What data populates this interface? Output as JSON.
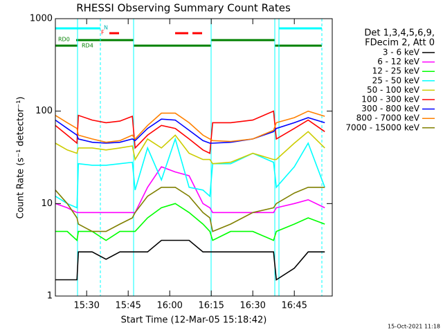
{
  "chart_data": {
    "type": "line",
    "title": "RHESSI Observing Summary Count Rates",
    "xlabel": "Start Time (12-Mar-05 15:18:42)",
    "ylabel": "Count Rate (s⁻¹ detector⁻¹)",
    "legend_title": [
      "Det 1,3,4,5,6,9,",
      "FDecim 2, Att 0"
    ],
    "footer": "15-Oct-2021 11:18",
    "annotations": [
      "N",
      "F",
      "RD0",
      "RD4"
    ],
    "log_y": true,
    "ylim": [
      1,
      1000
    ],
    "yticks": [
      1,
      10,
      100,
      1000
    ],
    "xlim": [
      18.7,
      118.7
    ],
    "xticks": [
      {
        "value": 30,
        "label": "15:30"
      },
      {
        "value": 45,
        "label": "15:45"
      },
      {
        "value": 60,
        "label": "16:00"
      },
      {
        "value": 75,
        "label": "16:15"
      },
      {
        "value": 90,
        "label": "16:30"
      },
      {
        "value": 105,
        "label": "16:45"
      }
    ],
    "x": [
      18.7,
      23,
      26.5,
      27,
      32,
      37,
      42,
      46.5,
      47.5,
      52,
      57,
      62,
      67,
      72,
      74.5,
      75.5,
      82,
      90,
      97.5,
      98.5,
      105,
      110,
      116
    ],
    "series": [
      {
        "name": "3 - 6 keV",
        "color": "#000000",
        "values": [
          1.5,
          1.5,
          1.5,
          3,
          3,
          2.5,
          3,
          3,
          3,
          3,
          4,
          4,
          4,
          3,
          3,
          3,
          3,
          3,
          3,
          1.5,
          2,
          3,
          3
        ]
      },
      {
        "name": "6 - 12 keV",
        "color": "#ff00ff",
        "values": [
          10,
          9,
          8,
          8,
          8,
          8,
          8,
          8,
          8,
          15,
          25,
          22,
          20,
          10,
          9,
          8,
          8,
          8,
          8,
          9,
          10,
          11,
          9
        ]
      },
      {
        "name": "12 - 25 keV",
        "color": "#00ff00",
        "values": [
          5,
          5,
          4,
          5,
          5,
          4,
          5,
          5,
          5,
          7,
          9,
          10,
          8,
          6,
          5,
          4,
          5,
          5,
          4,
          5,
          6,
          7,
          6
        ]
      },
      {
        "name": "25 - 50 keV",
        "color": "#00ffff",
        "values": [
          12,
          10,
          9,
          27,
          26,
          26,
          27,
          28,
          14,
          40,
          18,
          50,
          15,
          14,
          12,
          27,
          27,
          35,
          28,
          15,
          25,
          45,
          15
        ]
      },
      {
        "name": "50 - 100 keV",
        "color": "#cccc00",
        "values": [
          45,
          38,
          35,
          40,
          40,
          38,
          40,
          42,
          30,
          50,
          40,
          55,
          35,
          30,
          30,
          27,
          28,
          35,
          30,
          30,
          45,
          60,
          40
        ]
      },
      {
        "name": "100 - 300 keV",
        "color": "#ff0000",
        "values": [
          70,
          55,
          45,
          90,
          80,
          75,
          78,
          88,
          40,
          55,
          70,
          65,
          50,
          38,
          35,
          75,
          75,
          80,
          100,
          50,
          65,
          80,
          60
        ]
      },
      {
        "name": "300 - 800 keV",
        "color": "#0000ff",
        "values": [
          80,
          65,
          55,
          50,
          46,
          45,
          46,
          50,
          48,
          65,
          82,
          80,
          62,
          48,
          45,
          45,
          46,
          50,
          60,
          65,
          75,
          85,
          75
        ]
      },
      {
        "name": "800 - 7000 keV",
        "color": "#ff8000",
        "values": [
          90,
          75,
          65,
          55,
          50,
          46,
          48,
          55,
          50,
          70,
          95,
          95,
          75,
          55,
          50,
          48,
          47,
          50,
          62,
          75,
          85,
          100,
          88
        ]
      },
      {
        "name": "7000 - 15000 keV",
        "color": "#808000",
        "values": [
          14,
          10,
          7,
          6,
          5,
          5,
          6,
          7,
          8,
          12,
          15,
          15,
          12,
          8,
          7,
          5,
          6,
          8,
          9,
          10,
          13,
          15,
          15
        ]
      }
    ]
  }
}
